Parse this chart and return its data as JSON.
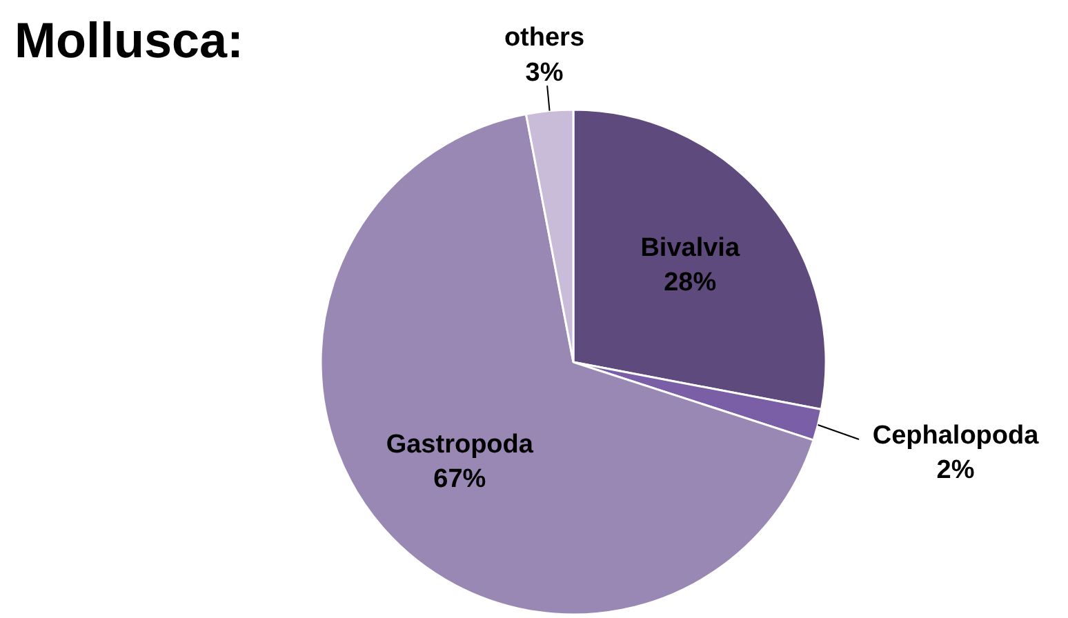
{
  "chart_data": {
    "type": "pie",
    "title": "Mollusca:",
    "categories": [
      "Bivalvia",
      "Cephalopoda",
      "Gastropoda",
      "others"
    ],
    "values": [
      28,
      2,
      67,
      3
    ],
    "value_labels": [
      "28%",
      "2%",
      "67%",
      "3%"
    ],
    "colors": [
      "#5e4a7c",
      "#7a5ea6",
      "#9a88b4",
      "#c9bcd8"
    ]
  }
}
